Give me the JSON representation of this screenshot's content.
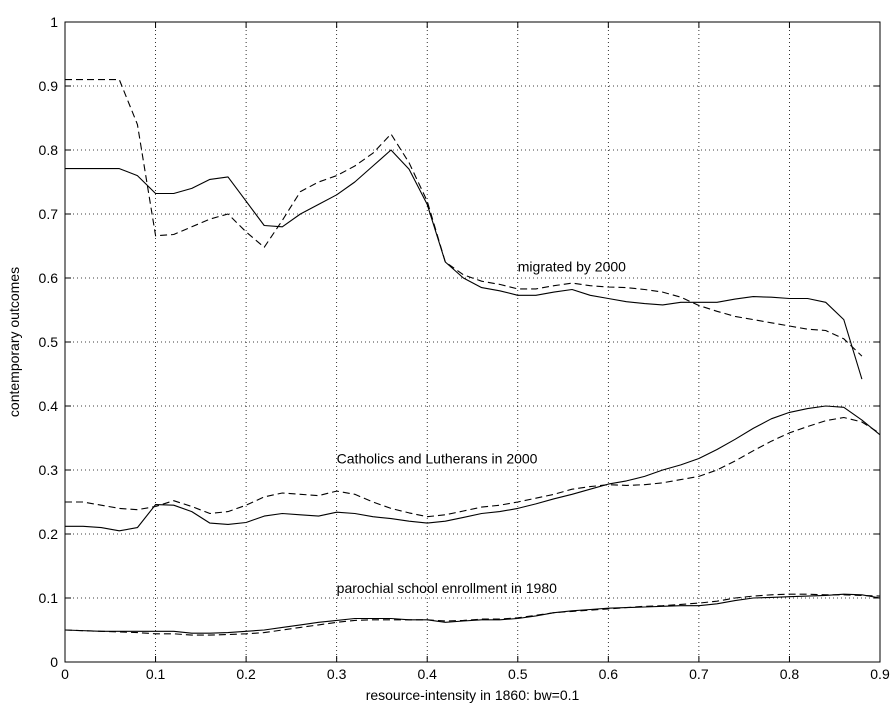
{
  "chart_data": {
    "type": "line",
    "title": "",
    "xlabel": "resource-intensity in 1860: bw=0.1",
    "ylabel": "contemporary outcomes",
    "xlim": [
      0,
      0.9
    ],
    "ylim": [
      0,
      1
    ],
    "xticks": [
      0,
      0.1,
      0.2,
      0.3,
      0.4,
      0.5,
      0.6,
      0.7,
      0.8,
      0.9
    ],
    "xtick_labels": [
      "0",
      "0.1",
      "0.2",
      "0.3",
      "0.4",
      "0.5",
      "0.6",
      "0.7",
      "0.8",
      "0.9"
    ],
    "yticks": [
      0,
      0.1,
      0.2,
      0.3,
      0.4,
      0.5,
      0.6,
      0.7,
      0.8,
      0.9,
      1
    ],
    "ytick_labels": [
      "0",
      "0.1",
      "0.2",
      "0.3",
      "0.4",
      "0.5",
      "0.6",
      "0.7",
      "0.8",
      "0.9",
      "1"
    ],
    "grid": true,
    "annotations": [
      {
        "text": "migrated by 2000",
        "x": 0.5,
        "y": 0.61
      },
      {
        "text": "Catholics and Lutherans in 2000",
        "x": 0.3,
        "y": 0.31
      },
      {
        "text": "parochial school enrollment in 1980",
        "x": 0.3,
        "y": 0.108
      }
    ],
    "series": [
      {
        "style": "solid",
        "x": [
          0,
          0.06,
          0.08,
          0.1,
          0.12,
          0.14,
          0.16,
          0.18,
          0.2,
          0.22,
          0.24,
          0.26,
          0.28,
          0.3,
          0.32,
          0.34,
          0.36,
          0.38,
          0.4,
          0.42,
          0.44,
          0.46,
          0.48,
          0.5,
          0.52,
          0.54,
          0.56,
          0.58,
          0.6,
          0.62,
          0.64,
          0.66,
          0.68,
          0.7,
          0.72,
          0.74,
          0.76,
          0.78,
          0.8,
          0.82,
          0.84,
          0.86,
          0.88
        ],
        "y": [
          0.771,
          0.771,
          0.76,
          0.732,
          0.732,
          0.74,
          0.754,
          0.758,
          0.72,
          0.682,
          0.68,
          0.7,
          0.715,
          0.73,
          0.75,
          0.775,
          0.8,
          0.77,
          0.715,
          0.625,
          0.6,
          0.585,
          0.58,
          0.573,
          0.573,
          0.578,
          0.582,
          0.573,
          0.568,
          0.563,
          0.56,
          0.558,
          0.562,
          0.562,
          0.562,
          0.567,
          0.571,
          0.57,
          0.568,
          0.568,
          0.562,
          0.535,
          0.442
        ]
      },
      {
        "style": "dashed",
        "x": [
          0,
          0.03,
          0.06,
          0.08,
          0.1,
          0.12,
          0.14,
          0.16,
          0.18,
          0.2,
          0.22,
          0.24,
          0.26,
          0.28,
          0.3,
          0.32,
          0.34,
          0.36,
          0.38,
          0.4,
          0.42,
          0.44,
          0.46,
          0.48,
          0.5,
          0.52,
          0.54,
          0.56,
          0.58,
          0.6,
          0.62,
          0.64,
          0.66,
          0.68,
          0.7,
          0.72,
          0.74,
          0.76,
          0.78,
          0.8,
          0.82,
          0.84,
          0.86,
          0.88
        ],
        "y": [
          0.91,
          0.91,
          0.91,
          0.84,
          0.666,
          0.668,
          0.68,
          0.692,
          0.7,
          0.672,
          0.648,
          0.69,
          0.735,
          0.75,
          0.76,
          0.775,
          0.795,
          0.825,
          0.78,
          0.72,
          0.625,
          0.605,
          0.595,
          0.59,
          0.583,
          0.583,
          0.588,
          0.592,
          0.588,
          0.586,
          0.585,
          0.582,
          0.578,
          0.57,
          0.557,
          0.548,
          0.54,
          0.535,
          0.53,
          0.525,
          0.52,
          0.518,
          0.505,
          0.478
        ]
      },
      {
        "style": "solid",
        "x": [
          0,
          0.02,
          0.04,
          0.06,
          0.08,
          0.1,
          0.12,
          0.14,
          0.16,
          0.18,
          0.2,
          0.22,
          0.24,
          0.26,
          0.28,
          0.3,
          0.32,
          0.34,
          0.36,
          0.38,
          0.4,
          0.42,
          0.44,
          0.46,
          0.48,
          0.5,
          0.52,
          0.54,
          0.56,
          0.58,
          0.6,
          0.62,
          0.64,
          0.66,
          0.68,
          0.7,
          0.72,
          0.74,
          0.76,
          0.78,
          0.8,
          0.82,
          0.84,
          0.86,
          0.88,
          0.9
        ],
        "y": [
          0.212,
          0.212,
          0.21,
          0.205,
          0.21,
          0.246,
          0.245,
          0.235,
          0.217,
          0.215,
          0.218,
          0.228,
          0.232,
          0.23,
          0.228,
          0.234,
          0.232,
          0.227,
          0.224,
          0.22,
          0.217,
          0.22,
          0.226,
          0.232,
          0.235,
          0.24,
          0.247,
          0.255,
          0.262,
          0.27,
          0.278,
          0.283,
          0.29,
          0.3,
          0.308,
          0.318,
          0.332,
          0.348,
          0.365,
          0.38,
          0.39,
          0.396,
          0.4,
          0.398,
          0.378,
          0.355
        ]
      },
      {
        "style": "dashed",
        "x": [
          0,
          0.02,
          0.04,
          0.06,
          0.08,
          0.1,
          0.12,
          0.14,
          0.16,
          0.18,
          0.2,
          0.22,
          0.24,
          0.26,
          0.28,
          0.3,
          0.32,
          0.34,
          0.36,
          0.38,
          0.4,
          0.42,
          0.44,
          0.46,
          0.48,
          0.5,
          0.52,
          0.54,
          0.56,
          0.58,
          0.6,
          0.62,
          0.64,
          0.66,
          0.68,
          0.7,
          0.72,
          0.74,
          0.76,
          0.78,
          0.8,
          0.82,
          0.84,
          0.86,
          0.88,
          0.9
        ],
        "y": [
          0.25,
          0.25,
          0.245,
          0.24,
          0.238,
          0.243,
          0.252,
          0.243,
          0.232,
          0.235,
          0.245,
          0.258,
          0.264,
          0.262,
          0.26,
          0.267,
          0.262,
          0.25,
          0.24,
          0.233,
          0.227,
          0.23,
          0.236,
          0.242,
          0.245,
          0.25,
          0.256,
          0.262,
          0.27,
          0.274,
          0.277,
          0.276,
          0.277,
          0.28,
          0.285,
          0.29,
          0.3,
          0.314,
          0.33,
          0.345,
          0.358,
          0.368,
          0.377,
          0.382,
          0.375,
          0.357
        ]
      },
      {
        "style": "solid",
        "x": [
          0,
          0.04,
          0.08,
          0.1,
          0.12,
          0.14,
          0.16,
          0.18,
          0.2,
          0.22,
          0.24,
          0.26,
          0.28,
          0.3,
          0.32,
          0.34,
          0.36,
          0.38,
          0.4,
          0.42,
          0.44,
          0.46,
          0.48,
          0.5,
          0.52,
          0.54,
          0.56,
          0.58,
          0.6,
          0.62,
          0.64,
          0.66,
          0.68,
          0.7,
          0.72,
          0.74,
          0.76,
          0.78,
          0.8,
          0.82,
          0.84,
          0.86,
          0.88,
          0.9
        ],
        "y": [
          0.05,
          0.048,
          0.048,
          0.048,
          0.048,
          0.045,
          0.045,
          0.046,
          0.048,
          0.05,
          0.054,
          0.058,
          0.062,
          0.065,
          0.068,
          0.068,
          0.068,
          0.066,
          0.066,
          0.062,
          0.064,
          0.066,
          0.066,
          0.068,
          0.072,
          0.077,
          0.08,
          0.082,
          0.084,
          0.085,
          0.086,
          0.087,
          0.088,
          0.088,
          0.091,
          0.096,
          0.1,
          0.101,
          0.102,
          0.103,
          0.104,
          0.106,
          0.105,
          0.1
        ]
      },
      {
        "style": "dashed",
        "x": [
          0,
          0.04,
          0.08,
          0.1,
          0.12,
          0.14,
          0.16,
          0.18,
          0.2,
          0.22,
          0.24,
          0.26,
          0.28,
          0.3,
          0.32,
          0.34,
          0.36,
          0.38,
          0.4,
          0.42,
          0.44,
          0.46,
          0.48,
          0.5,
          0.52,
          0.54,
          0.56,
          0.58,
          0.6,
          0.62,
          0.64,
          0.66,
          0.68,
          0.7,
          0.72,
          0.74,
          0.76,
          0.78,
          0.8,
          0.82,
          0.84,
          0.86,
          0.88,
          0.9
        ],
        "y": [
          0.05,
          0.048,
          0.046,
          0.044,
          0.044,
          0.042,
          0.042,
          0.043,
          0.044,
          0.046,
          0.05,
          0.054,
          0.058,
          0.062,
          0.065,
          0.066,
          0.066,
          0.066,
          0.066,
          0.064,
          0.065,
          0.067,
          0.067,
          0.069,
          0.073,
          0.077,
          0.079,
          0.081,
          0.083,
          0.085,
          0.087,
          0.088,
          0.09,
          0.092,
          0.095,
          0.1,
          0.103,
          0.105,
          0.106,
          0.106,
          0.105,
          0.105,
          0.104,
          0.103
        ]
      }
    ]
  }
}
